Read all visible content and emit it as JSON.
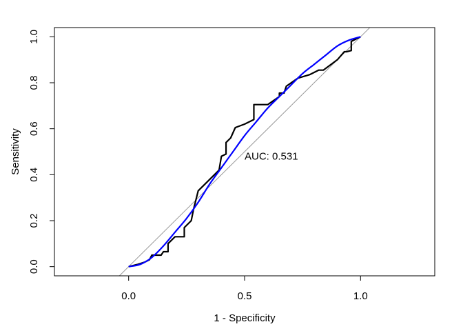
{
  "chart_data": {
    "type": "line",
    "title": "",
    "xlabel": "1 - Specificity",
    "ylabel": "Sensitivity",
    "xlim": [
      -0.32,
      1.32
    ],
    "ylim": [
      -0.04,
      1.04
    ],
    "xticks": [
      0.0,
      0.5,
      1.0
    ],
    "xtick_labels": [
      "0.0",
      "0.5",
      "1.0"
    ],
    "yticks": [
      0.0,
      0.2,
      0.4,
      0.6,
      0.8,
      1.0
    ],
    "ytick_labels": [
      "0.0",
      "0.2",
      "0.4",
      "0.6",
      "0.8",
      "1.0"
    ],
    "grid": false,
    "legend": "none",
    "annotation": {
      "text": "AUC: 0.531",
      "x": 0.5,
      "y": 0.48
    },
    "series": [
      {
        "kind": "reference-diagonal",
        "color": "#999999",
        "x": [
          -0.05,
          1.05
        ],
        "y": [
          -0.05,
          1.05
        ]
      },
      {
        "kind": "empirical-roc",
        "color": "#000000",
        "x": [
          0.0,
          0.04,
          0.07,
          0.09,
          0.1,
          0.14,
          0.15,
          0.17,
          0.17,
          0.2,
          0.24,
          0.24,
          0.27,
          0.28,
          0.3,
          0.33,
          0.39,
          0.4,
          0.42,
          0.42,
          0.44,
          0.46,
          0.5,
          0.54,
          0.54,
          0.6,
          0.65,
          0.65,
          0.67,
          0.68,
          0.73,
          0.78,
          0.82,
          0.84,
          0.9,
          0.93,
          0.94,
          0.96,
          0.96,
          0.98,
          1.0
        ],
        "y": [
          0.0,
          0.01,
          0.02,
          0.03,
          0.05,
          0.05,
          0.065,
          0.065,
          0.1,
          0.13,
          0.13,
          0.17,
          0.2,
          0.25,
          0.33,
          0.36,
          0.42,
          0.48,
          0.49,
          0.54,
          0.56,
          0.605,
          0.62,
          0.64,
          0.705,
          0.705,
          0.74,
          0.755,
          0.755,
          0.785,
          0.82,
          0.835,
          0.855,
          0.855,
          0.9,
          0.935,
          0.935,
          0.94,
          0.98,
          0.99,
          1.0
        ]
      },
      {
        "kind": "smoothed-roc",
        "color": "#0000ff",
        "x": [
          0.0,
          0.05,
          0.1,
          0.15,
          0.2,
          0.25,
          0.3,
          0.35,
          0.4,
          0.45,
          0.5,
          0.55,
          0.6,
          0.65,
          0.7,
          0.75,
          0.8,
          0.85,
          0.9,
          0.95,
          1.0
        ],
        "y": [
          0.0,
          0.01,
          0.04,
          0.09,
          0.15,
          0.21,
          0.28,
          0.36,
          0.43,
          0.5,
          0.57,
          0.63,
          0.69,
          0.74,
          0.79,
          0.84,
          0.88,
          0.92,
          0.96,
          0.985,
          1.0
        ]
      }
    ]
  }
}
